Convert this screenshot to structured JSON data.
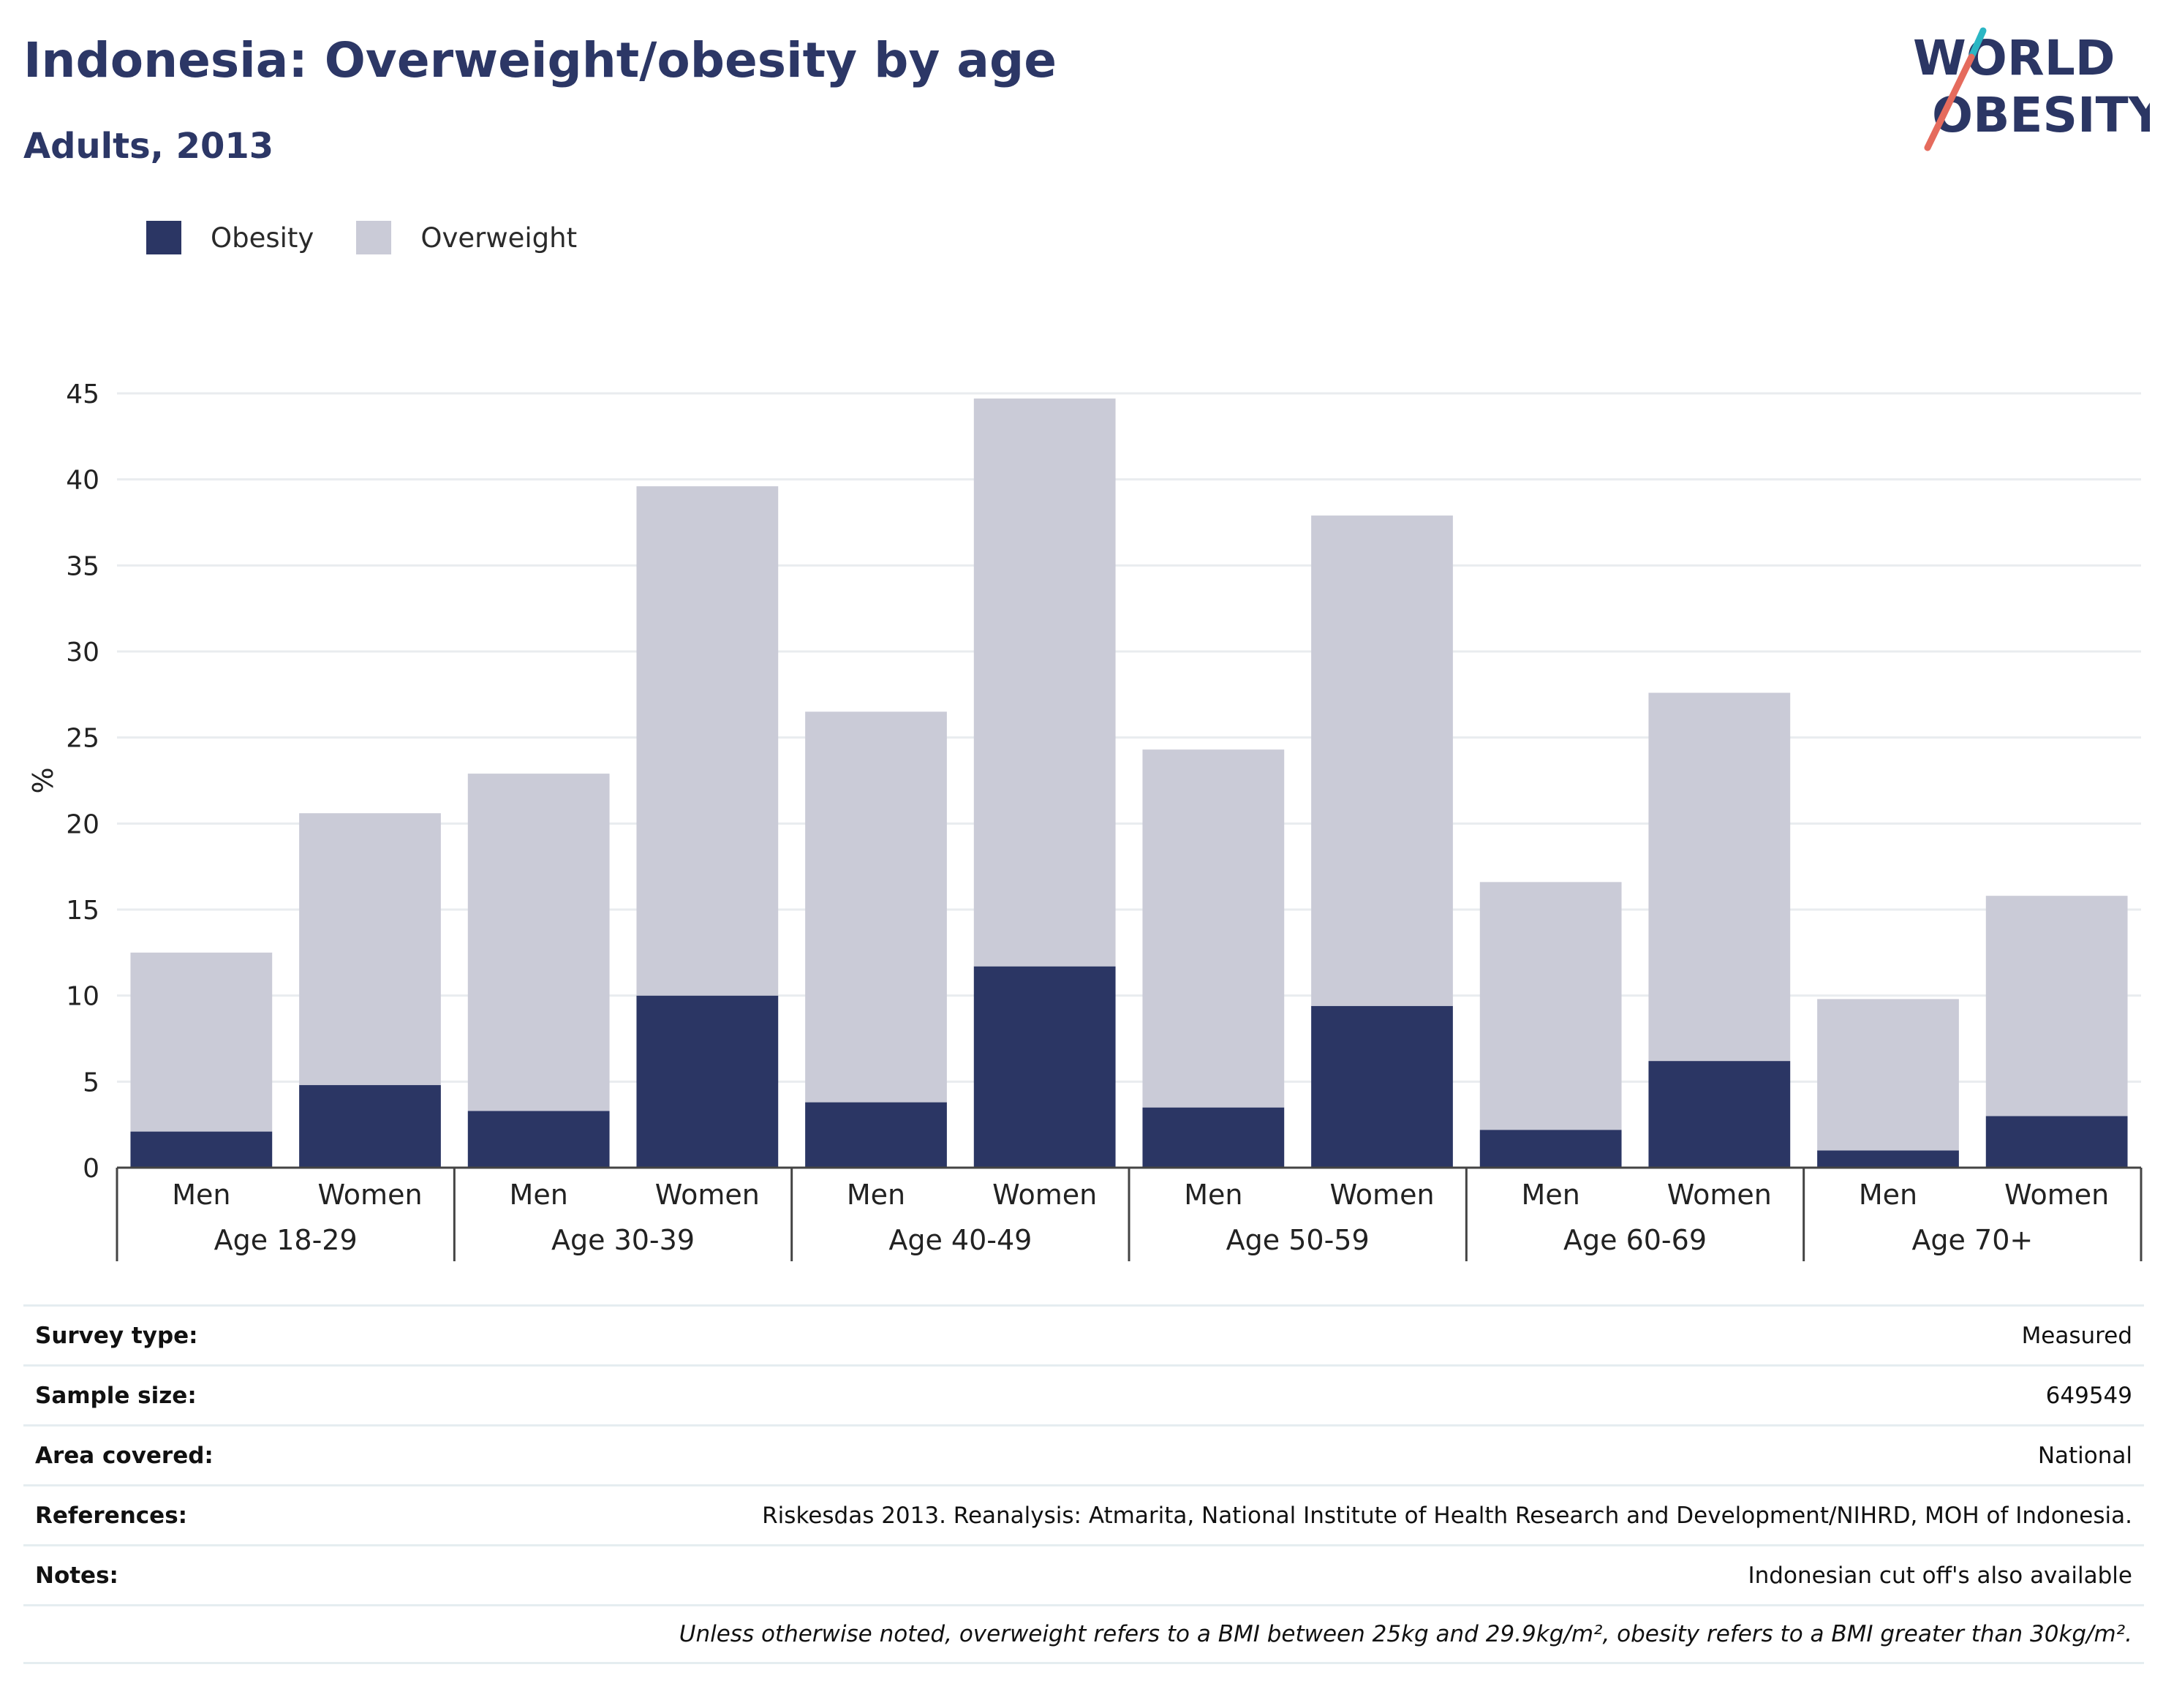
{
  "header": {
    "title": "Indonesia: Overweight/obesity by age",
    "subtitle": "Adults, 2013",
    "logo_line1": "WORLD",
    "logo_line2": "OBESITY"
  },
  "legend": [
    {
      "label": "Obesity",
      "color": "#2b3664"
    },
    {
      "label": "Overweight",
      "color": "#cacbd7"
    }
  ],
  "chart_data": {
    "type": "bar",
    "stacked": true,
    "xlabel": "",
    "ylabel": "%",
    "ylim": [
      0,
      45
    ],
    "yticks": [
      "0",
      "5",
      "10",
      "15",
      "20",
      "25",
      "30",
      "35",
      "40",
      "45"
    ],
    "grid": true,
    "legend_position": "top-left",
    "groups": [
      "Age 18-29",
      "Age 30-39",
      "Age 40-49",
      "Age 50-59",
      "Age 60-69",
      "Age 70+"
    ],
    "categories": [
      "Men",
      "Women",
      "Men",
      "Women",
      "Men",
      "Women",
      "Men",
      "Women",
      "Men",
      "Women",
      "Men",
      "Women"
    ],
    "series": [
      {
        "name": "Obesity",
        "color": "#2b3664",
        "values": [
          2.1,
          4.8,
          3.3,
          10.0,
          3.8,
          11.7,
          3.5,
          9.4,
          2.2,
          6.2,
          1.0,
          3.0
        ]
      },
      {
        "name": "Overweight",
        "color": "#cacbd7",
        "values": [
          10.4,
          15.8,
          19.6,
          29.6,
          22.7,
          33.0,
          20.8,
          28.5,
          14.4,
          21.4,
          8.8,
          12.8
        ]
      }
    ]
  },
  "info": {
    "rows": [
      {
        "key": "Survey type:",
        "value": "Measured"
      },
      {
        "key": "Sample size:",
        "value": "649549"
      },
      {
        "key": "Area covered:",
        "value": "National"
      },
      {
        "key": "References:",
        "value": "Riskesdas 2013. Reanalysis: Atmarita, National Institute of Health Research and Development/NIHRD, MOH of Indonesia."
      },
      {
        "key": "Notes:",
        "value": "Indonesian cut off's also available"
      }
    ],
    "footnote": "Unless otherwise noted, overweight refers to a BMI between 25kg and 29.9kg/m², obesity refers to a BMI greater than 30kg/m²."
  }
}
